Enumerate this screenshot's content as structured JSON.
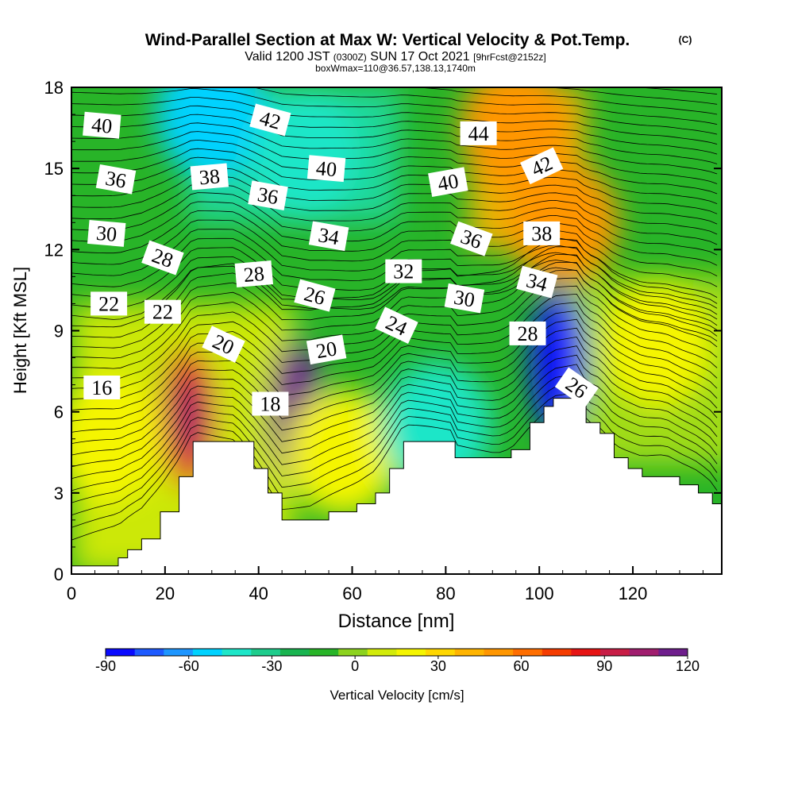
{
  "chart_data": {
    "type": "heatmap",
    "title": "Wind-Parallel Section at Max W: Vertical Velocity & Pot.Temp.",
    "title_mark": "(C)",
    "subtitle": {
      "valid": "Valid 1200 JST",
      "utc": "(0300Z)",
      "date": "SUN 17 Oct 2021",
      "forecast": "[9hrFcst@2152z]"
    },
    "box_info": "boxWmax=110@36.57,138.13,1740m",
    "xlabel": "Distance [nm]",
    "ylabel": "Height [Kft MSL]",
    "xlim": [
      0,
      139
    ],
    "ylim": [
      0,
      18
    ],
    "xticks": [
      "0",
      "20",
      "40",
      "60",
      "80",
      "100",
      "120"
    ],
    "yticks": [
      "0",
      "3",
      "6",
      "9",
      "12",
      "15",
      "18"
    ],
    "colorbar": {
      "label": "Vertical Velocity [cm/s]",
      "tick_labels": [
        "-90",
        "-60",
        "-30",
        "0",
        "30",
        "60",
        "90",
        "120"
      ],
      "tick_values": [
        -90,
        -60,
        -30,
        0,
        30,
        60,
        90,
        120
      ],
      "range": [
        -90,
        120
      ],
      "colors": [
        "#0a0aff",
        "#1e5aff",
        "#1e96ff",
        "#00d2ff",
        "#1ee6c8",
        "#1ecc8c",
        "#19b450",
        "#28b428",
        "#8cd21e",
        "#d2eb0a",
        "#f5f500",
        "#ffd700",
        "#ffb400",
        "#ff9600",
        "#ff6e00",
        "#f53c00",
        "#e61414",
        "#c81e46",
        "#a01e6e",
        "#6e1e8c"
      ]
    },
    "terrain_kft": [
      [
        0,
        0.3
      ],
      [
        10,
        0.6
      ],
      [
        12,
        0.9
      ],
      [
        15,
        1.3
      ],
      [
        19,
        2.3
      ],
      [
        23,
        3.6
      ],
      [
        26,
        4.9
      ],
      [
        35,
        4.9
      ],
      [
        39,
        3.9
      ],
      [
        42,
        3.0
      ],
      [
        45,
        2.0
      ],
      [
        51,
        2.0
      ],
      [
        55,
        2.3
      ],
      [
        61,
        2.6
      ],
      [
        65,
        3.0
      ],
      [
        68,
        3.9
      ],
      [
        71,
        4.9
      ],
      [
        81,
        4.9
      ],
      [
        82,
        4.3
      ],
      [
        91,
        4.3
      ],
      [
        94,
        4.6
      ],
      [
        98,
        5.6
      ],
      [
        101,
        6.2
      ],
      [
        103,
        6.5
      ],
      [
        108,
        6.5
      ],
      [
        110,
        5.6
      ],
      [
        113,
        5.2
      ],
      [
        116,
        4.3
      ],
      [
        119,
        3.9
      ],
      [
        122,
        3.6
      ],
      [
        127,
        3.6
      ],
      [
        130,
        3.3
      ],
      [
        134,
        3.0
      ],
      [
        137,
        2.6
      ],
      [
        139,
        2.0
      ]
    ],
    "velocity_regions": [
      {
        "x": 25,
        "y": 5.8,
        "value": 80
      },
      {
        "x": 48,
        "y": 6.0,
        "value": 115
      },
      {
        "x": 58,
        "y": 4.5,
        "value": 20
      },
      {
        "x": 78,
        "y": 5.5,
        "value": -45
      },
      {
        "x": 104,
        "y": 7.8,
        "value": -90
      },
      {
        "x": 95,
        "y": 16.5,
        "value": 50
      },
      {
        "x": 105,
        "y": 13.0,
        "value": 55
      },
      {
        "x": 30,
        "y": 17.0,
        "value": -50
      },
      {
        "x": 50,
        "y": 15.5,
        "value": -40
      },
      {
        "x": 8,
        "y": 5.0,
        "value": 20
      },
      {
        "x": 125,
        "y": 8.5,
        "value": 15
      }
    ],
    "isentrope_labels": [
      {
        "text": "40",
        "x": 6.5,
        "y": 16.6,
        "rot": 5
      },
      {
        "text": "42",
        "x": 42.5,
        "y": 16.8,
        "rot": 15
      },
      {
        "text": "44",
        "x": 87,
        "y": 16.3,
        "rot": 0
      },
      {
        "text": "36",
        "x": 9.5,
        "y": 14.6,
        "rot": 10
      },
      {
        "text": "38",
        "x": 29.5,
        "y": 14.7,
        "rot": -5
      },
      {
        "text": "40",
        "x": 54.5,
        "y": 15.0,
        "rot": 5
      },
      {
        "text": "40",
        "x": 80.5,
        "y": 14.5,
        "rot": -10
      },
      {
        "text": "42",
        "x": 100.5,
        "y": 15.1,
        "rot": -25
      },
      {
        "text": "36",
        "x": 42,
        "y": 14.0,
        "rot": 10
      },
      {
        "text": "30",
        "x": 7.5,
        "y": 12.6,
        "rot": 5
      },
      {
        "text": "34",
        "x": 55,
        "y": 12.5,
        "rot": 10
      },
      {
        "text": "36",
        "x": 85.5,
        "y": 12.4,
        "rot": 20
      },
      {
        "text": "38",
        "x": 100.5,
        "y": 12.6,
        "rot": 0
      },
      {
        "text": "28",
        "x": 19.5,
        "y": 11.7,
        "rot": 20
      },
      {
        "text": "28",
        "x": 39,
        "y": 11.1,
        "rot": -5
      },
      {
        "text": "32",
        "x": 71,
        "y": 11.2,
        "rot": 0
      },
      {
        "text": "26",
        "x": 52,
        "y": 10.3,
        "rot": 15
      },
      {
        "text": "30",
        "x": 84,
        "y": 10.2,
        "rot": 10
      },
      {
        "text": "34",
        "x": 99.5,
        "y": 10.8,
        "rot": 15
      },
      {
        "text": "22",
        "x": 8,
        "y": 10.0,
        "rot": 0
      },
      {
        "text": "22",
        "x": 19.5,
        "y": 9.7,
        "rot": 0
      },
      {
        "text": "24",
        "x": 69.5,
        "y": 9.2,
        "rot": 25
      },
      {
        "text": "28",
        "x": 97.5,
        "y": 8.9,
        "rot": 0
      },
      {
        "text": "20",
        "x": 32.5,
        "y": 8.5,
        "rot": 25
      },
      {
        "text": "20",
        "x": 54.5,
        "y": 8.3,
        "rot": -10
      },
      {
        "text": "16",
        "x": 6.5,
        "y": 6.9,
        "rot": 0
      },
      {
        "text": "26",
        "x": 108,
        "y": 6.9,
        "rot": 35
      },
      {
        "text": "18",
        "x": 42.5,
        "y": 6.3,
        "rot": 0
      }
    ]
  }
}
